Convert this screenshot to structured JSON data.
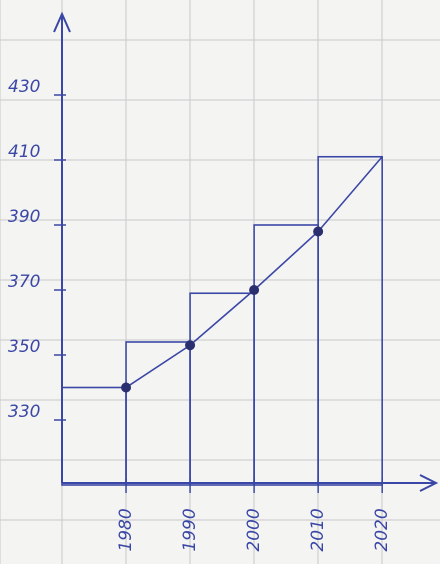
{
  "chart_data": {
    "type": "histogram",
    "bins": [
      1970,
      1980,
      1990,
      2000,
      2010,
      2020
    ],
    "values": [
      340,
      354,
      369,
      390,
      411
    ],
    "color": "#3b47a6",
    "line": {
      "x": [
        1980,
        1990,
        2000,
        2010,
        2020
      ],
      "values": [
        340,
        353,
        370,
        388,
        411
      ]
    },
    "xlim": [
      1970,
      2027
    ],
    "xticks": [
      1980,
      1990,
      2000,
      2010,
      2020
    ],
    "ylim": [
      310,
      450
    ],
    "yticks": [
      330,
      350,
      370,
      390,
      410,
      430
    ],
    "grid": false
  }
}
